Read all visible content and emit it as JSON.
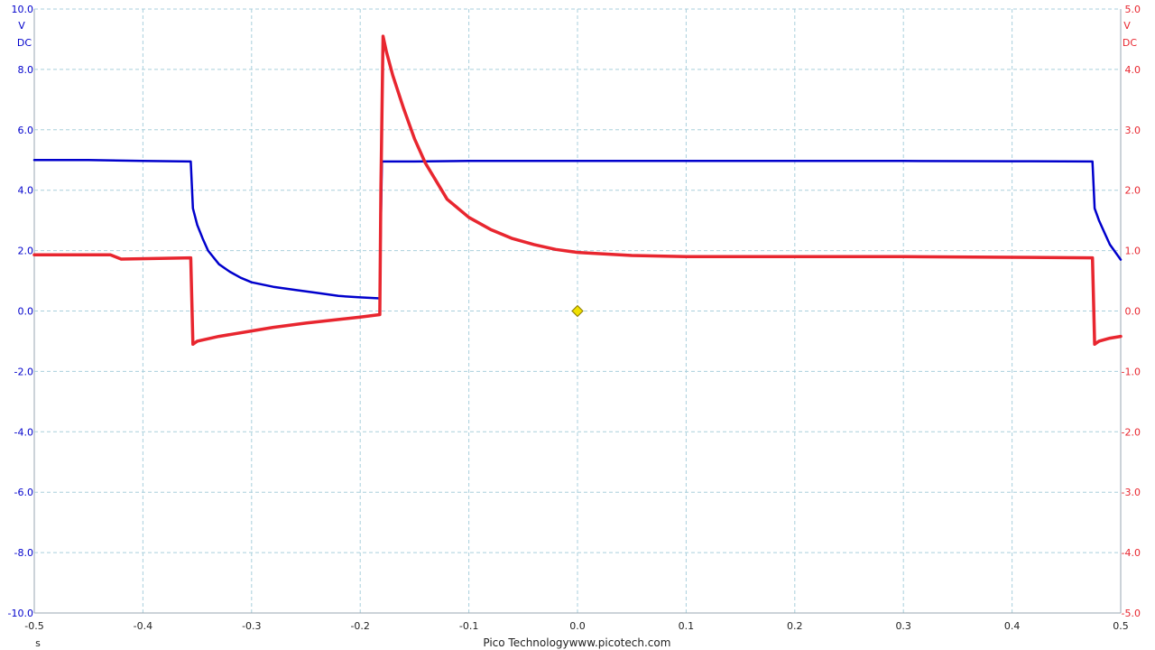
{
  "footer": {
    "brand": "Pico Technology",
    "url": "www.picotech.com"
  },
  "chart_data": {
    "type": "line",
    "grid": true,
    "x_axis": {
      "unit": "s",
      "range": [
        -0.5,
        0.5
      ],
      "ticks": [
        "-0.5",
        "-0.4",
        "-0.3",
        "-0.2",
        "-0.1",
        "0.0",
        "0.1",
        "0.2",
        "0.3",
        "0.4",
        "0.5"
      ]
    },
    "left_axis": {
      "color": "#0000cc",
      "unit": "V",
      "coupling": "DC",
      "range": [
        -10,
        10
      ],
      "ticks": [
        "10.0",
        "8.0",
        "6.0",
        "4.0",
        "2.0",
        "0.0",
        "-2.0",
        "-4.0",
        "-6.0",
        "-8.0",
        "-10.0"
      ]
    },
    "right_axis": {
      "color": "#e8262f",
      "unit": "V",
      "coupling": "DC",
      "range": [
        -5,
        5
      ],
      "ticks": [
        "5.0",
        "4.0",
        "3.0",
        "2.0",
        "1.0",
        "0.0",
        "-1.0",
        "-2.0",
        "-3.0",
        "-4.0",
        "-5.0"
      ]
    },
    "trigger_marker": {
      "x": 0.0,
      "y": 0.0,
      "color": "#f0e000"
    },
    "series": [
      {
        "axis": "left",
        "color": "#0000cc",
        "x": [
          -0.5,
          -0.45,
          -0.4,
          -0.356,
          -0.354,
          -0.35,
          -0.345,
          -0.34,
          -0.33,
          -0.32,
          -0.31,
          -0.3,
          -0.28,
          -0.26,
          -0.24,
          -0.22,
          -0.2,
          -0.182,
          -0.181,
          -0.18,
          -0.176,
          -0.15,
          -0.1,
          0.0,
          0.1,
          0.2,
          0.3,
          0.4,
          0.474,
          0.476,
          0.48,
          0.485,
          0.49,
          0.5
        ],
        "y": [
          5.0,
          5.0,
          4.97,
          4.95,
          3.4,
          2.85,
          2.4,
          2.0,
          1.55,
          1.3,
          1.1,
          0.95,
          0.8,
          0.7,
          0.6,
          0.5,
          0.45,
          0.42,
          3.0,
          4.95,
          4.95,
          4.95,
          4.97,
          4.97,
          4.97,
          4.97,
          4.97,
          4.96,
          4.95,
          3.4,
          3.0,
          2.6,
          2.2,
          1.7
        ]
      },
      {
        "axis": "right",
        "color": "#e8262f",
        "x": [
          -0.5,
          -0.43,
          -0.42,
          -0.356,
          -0.354,
          -0.35,
          -0.33,
          -0.3,
          -0.28,
          -0.25,
          -0.22,
          -0.2,
          -0.182,
          -0.181,
          -0.179,
          -0.176,
          -0.17,
          -0.16,
          -0.15,
          -0.14,
          -0.13,
          -0.12,
          -0.1,
          -0.08,
          -0.06,
          -0.04,
          -0.02,
          0.0,
          0.05,
          0.1,
          0.2,
          0.3,
          0.4,
          0.474,
          0.476,
          0.48,
          0.49,
          0.5
        ],
        "y": [
          0.93,
          0.93,
          0.86,
          0.88,
          -0.55,
          -0.5,
          -0.42,
          -0.33,
          -0.27,
          -0.2,
          -0.14,
          -0.1,
          -0.06,
          2.0,
          4.55,
          4.3,
          3.9,
          3.35,
          2.85,
          2.45,
          2.15,
          1.85,
          1.55,
          1.35,
          1.2,
          1.1,
          1.02,
          0.97,
          0.92,
          0.9,
          0.9,
          0.9,
          0.89,
          0.88,
          -0.55,
          -0.5,
          -0.45,
          -0.42
        ]
      }
    ]
  }
}
